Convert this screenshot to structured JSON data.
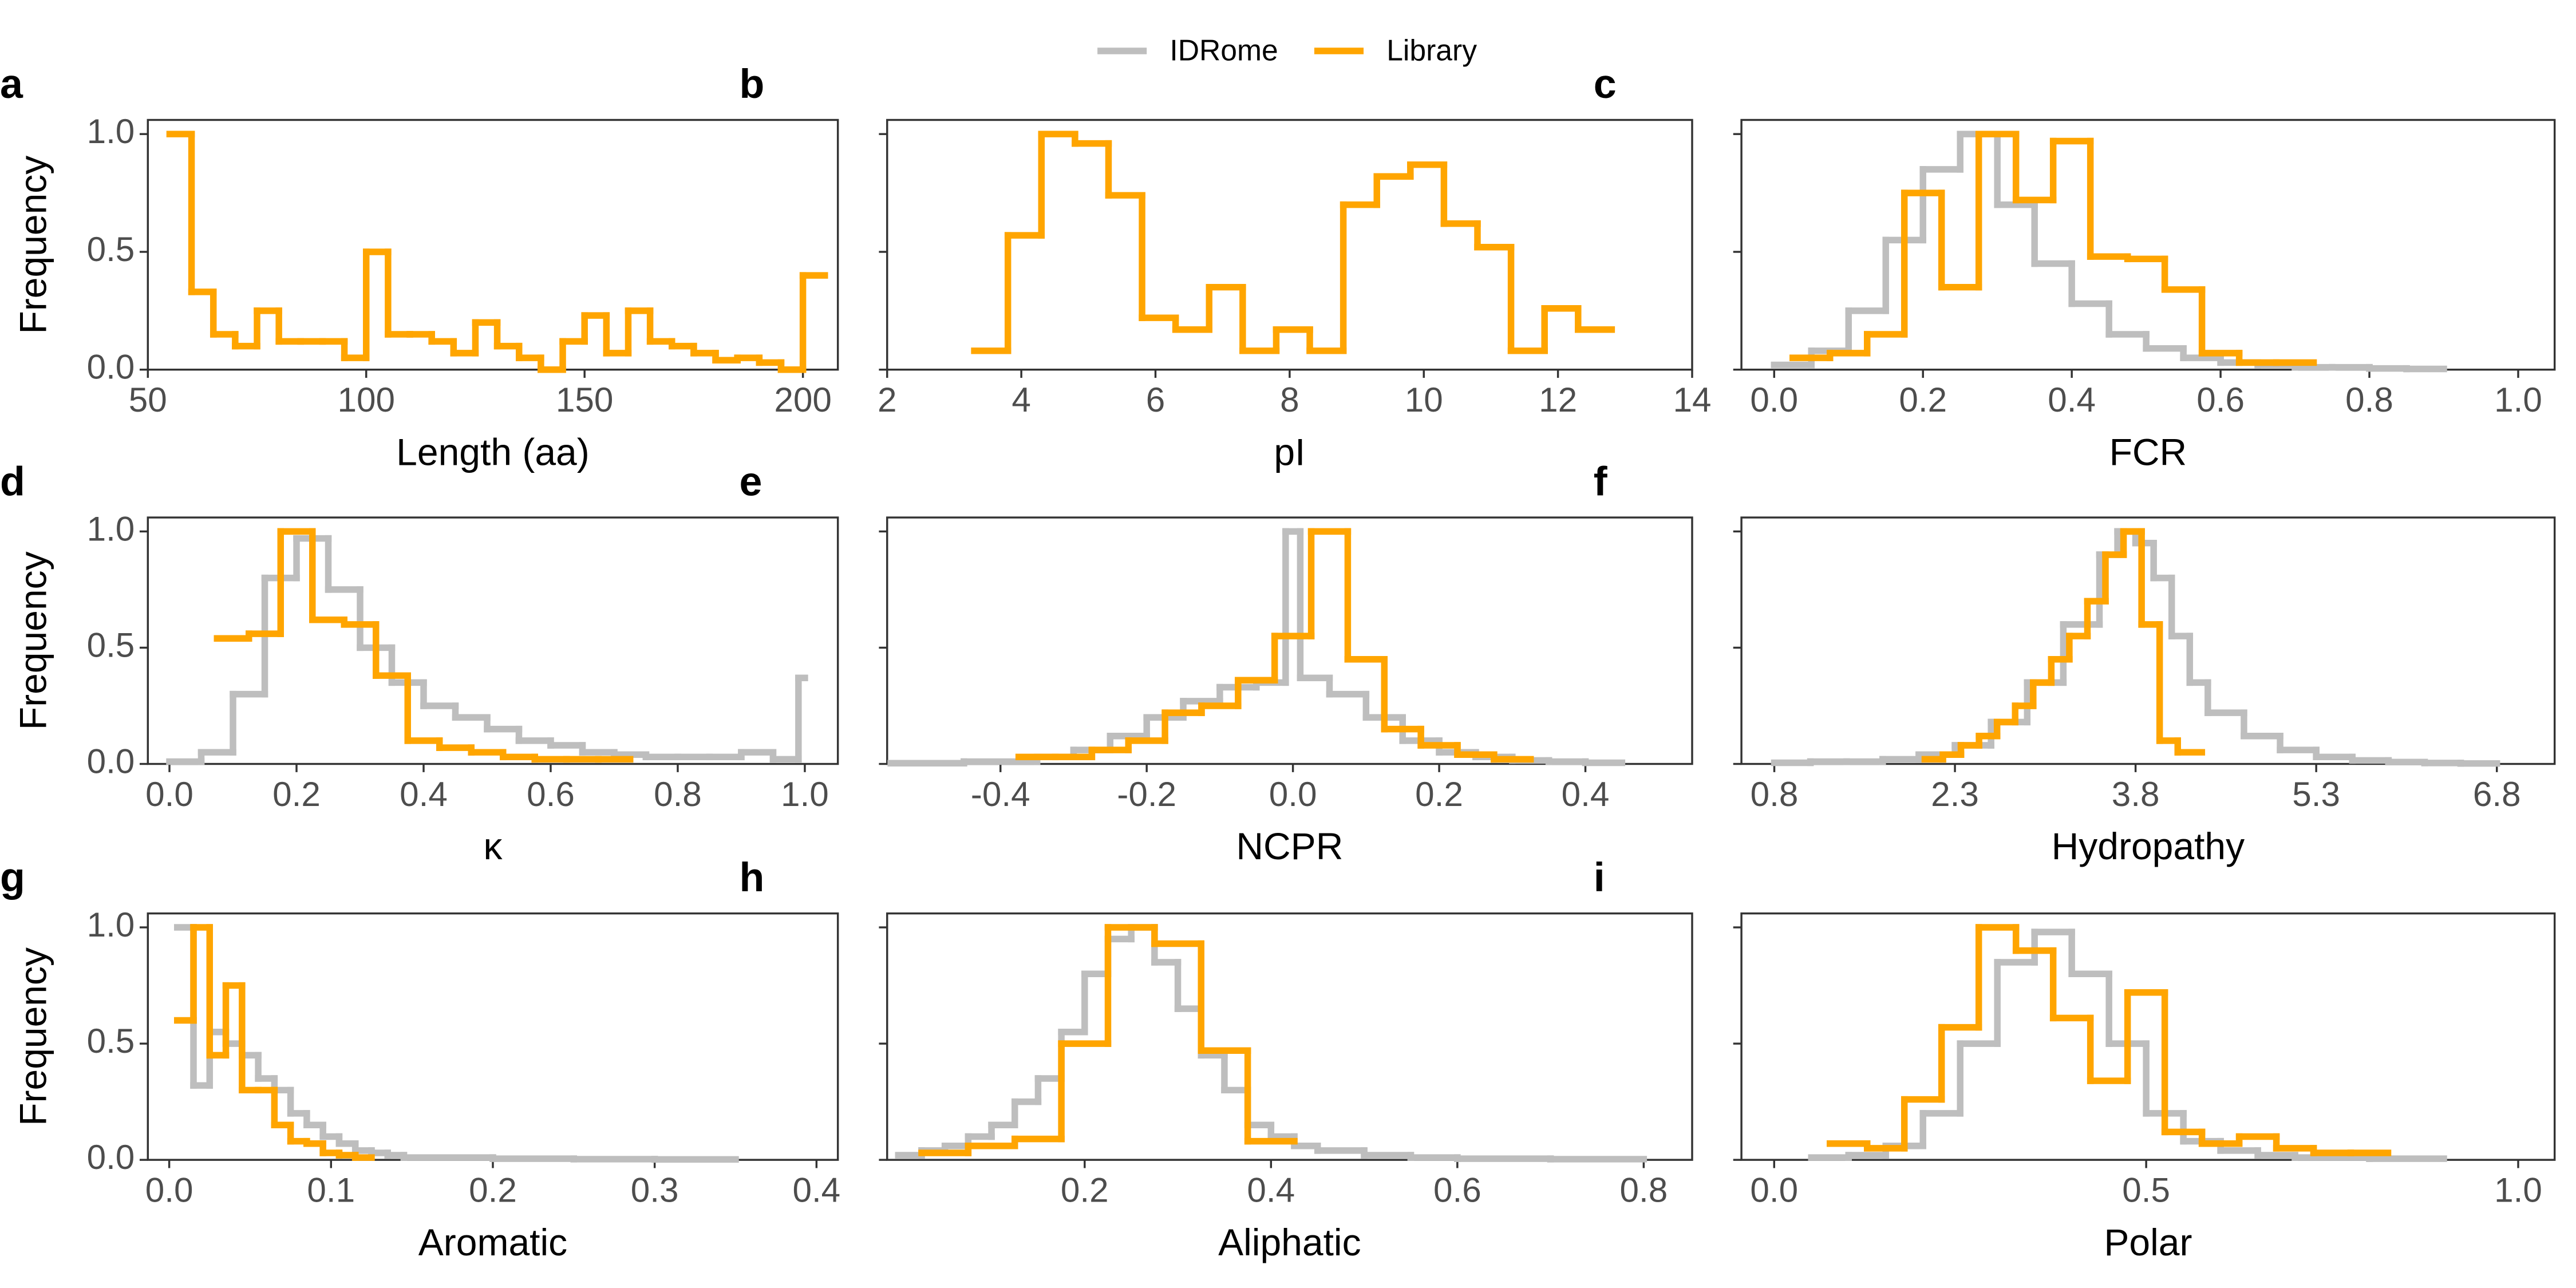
{
  "legend": [
    {
      "name": "IDRome",
      "color": "#bebebe"
    },
    {
      "name": "Library",
      "color": "#ffa500"
    }
  ],
  "chart_data": [
    {
      "type": "step",
      "panel": "a",
      "xlabel": "Length (aa)",
      "ylabel": "Frequency",
      "xlim": [
        50,
        208
      ],
      "xticks": [
        50,
        100,
        150,
        200
      ],
      "ylim": [
        0,
        1.06
      ],
      "yticks": [
        {
          "value": 0,
          "label": "0.0"
        },
        0.5,
        {
          "value": 1,
          "label": "1.0"
        }
      ],
      "ytick_labels": true,
      "series": [
        {
          "name": "Library",
          "bins": [
            55,
            60,
            65,
            70,
            75,
            80,
            85,
            90,
            95,
            100,
            105,
            110,
            115,
            120,
            125,
            130,
            135,
            140,
            145,
            150,
            155,
            160,
            165,
            170,
            175,
            180,
            185,
            190,
            195,
            200,
            205
          ],
          "values": [
            1.0,
            0.33,
            0.15,
            0.1,
            0.25,
            0.12,
            0.12,
            0.12,
            0.05,
            0.5,
            0.15,
            0.15,
            0.12,
            0.07,
            0.2,
            0.1,
            0.05,
            0.0,
            0.12,
            0.23,
            0.07,
            0.25,
            0.12,
            0.1,
            0.07,
            0.04,
            0.05,
            0.03,
            0.0,
            0.4
          ]
        }
      ]
    },
    {
      "type": "step",
      "panel": "b",
      "xlabel": "pI",
      "xlim": [
        2,
        14
      ],
      "xticks": [
        2,
        4,
        6,
        8,
        10,
        12,
        14
      ],
      "ylim": [
        0,
        1.06
      ],
      "yticks": [
        {
          "value": 0,
          "label": "0.0"
        },
        0.5,
        {
          "value": 1,
          "label": "1.0"
        }
      ],
      "ytick_labels": false,
      "series": [
        {
          "name": "Library",
          "bins": [
            3.3,
            3.8,
            4.3,
            4.8,
            5.3,
            5.8,
            6.3,
            6.8,
            7.3,
            7.8,
            8.3,
            8.8,
            9.3,
            9.8,
            10.3,
            10.8,
            11.3,
            11.8,
            12.3,
            12.8
          ],
          "values": [
            0.08,
            0.57,
            1.0,
            0.96,
            0.74,
            0.22,
            0.17,
            0.35,
            0.08,
            0.17,
            0.08,
            0.7,
            0.82,
            0.87,
            0.62,
            0.52,
            0.08,
            0.26,
            0.17
          ]
        }
      ]
    },
    {
      "type": "step",
      "panel": "c",
      "xlabel": "FCR",
      "xlim": [
        -0.044,
        1.049
      ],
      "xticks": [
        {
          "value": 0,
          "label": "0.0"
        },
        0.2,
        0.4,
        0.6,
        0.8,
        {
          "value": 1,
          "label": "1.0"
        }
      ],
      "ylim": [
        0,
        1.06
      ],
      "yticks": [
        {
          "value": 0,
          "label": "0.0"
        },
        0.5,
        {
          "value": 1,
          "label": "1.0"
        }
      ],
      "ytick_labels": false,
      "series": [
        {
          "name": "IDRome",
          "bins": [
            0,
            0.05,
            0.1,
            0.15,
            0.2,
            0.25,
            0.3,
            0.35,
            0.4,
            0.45,
            0.5,
            0.55,
            0.6,
            0.65,
            0.7,
            0.75,
            0.8,
            0.85,
            0.9
          ],
          "values": [
            0.02,
            0.08,
            0.25,
            0.55,
            0.85,
            1.0,
            0.7,
            0.45,
            0.28,
            0.15,
            0.09,
            0.05,
            0.03,
            0.02,
            0.01,
            0.01,
            0.005,
            0.003
          ]
        },
        {
          "name": "Library",
          "bins": [
            0.025,
            0.075,
            0.125,
            0.175,
            0.225,
            0.275,
            0.325,
            0.375,
            0.425,
            0.475,
            0.525,
            0.575,
            0.625,
            0.675,
            0.725
          ],
          "values": [
            0.05,
            0.07,
            0.15,
            0.75,
            0.35,
            1.0,
            0.72,
            0.97,
            0.48,
            0.47,
            0.34,
            0.07,
            0.03,
            0.03
          ]
        }
      ]
    },
    {
      "type": "step",
      "panel": "d",
      "xlabel": "κ",
      "ylabel": "Frequency",
      "xlim": [
        -0.034,
        1.052
      ],
      "xticks": [
        {
          "value": 0,
          "label": "0.0"
        },
        0.2,
        0.4,
        0.6,
        0.8,
        {
          "value": 1,
          "label": "1.0"
        }
      ],
      "ylim": [
        0,
        1.06
      ],
      "yticks": [
        {
          "value": 0,
          "label": "0.0"
        },
        0.5,
        {
          "value": 1,
          "label": "1.0"
        }
      ],
      "ytick_labels": true,
      "series": [
        {
          "name": "IDRome",
          "bins": [
            0,
            0.05,
            0.1,
            0.15,
            0.2,
            0.25,
            0.3,
            0.35,
            0.4,
            0.45,
            0.5,
            0.55,
            0.6,
            0.65,
            0.7,
            0.75,
            0.8,
            0.85,
            0.9,
            0.95,
            0.99,
            1.0
          ],
          "values": [
            0.01,
            0.05,
            0.3,
            0.8,
            0.97,
            0.75,
            0.5,
            0.35,
            0.25,
            0.2,
            0.15,
            0.1,
            0.08,
            0.05,
            0.04,
            0.03,
            0.03,
            0.03,
            0.05,
            0.02,
            0.37
          ]
        },
        {
          "name": "Library",
          "bins": [
            0.075,
            0.125,
            0.175,
            0.225,
            0.275,
            0.325,
            0.375,
            0.425,
            0.475,
            0.525,
            0.575,
            0.625,
            0.675,
            0.725
          ],
          "values": [
            0.54,
            0.56,
            1.0,
            0.62,
            0.6,
            0.38,
            0.1,
            0.07,
            0.05,
            0.03,
            0.02,
            0.02,
            0.02
          ]
        }
      ]
    },
    {
      "type": "step",
      "panel": "e",
      "xlabel": "NCPR",
      "xlim": [
        -0.555,
        0.546
      ],
      "xticks": [
        -0.4,
        -0.2,
        {
          "value": 0,
          "label": "0.0"
        },
        0.2,
        0.4
      ],
      "ylim": [
        0,
        1.06
      ],
      "yticks": [
        {
          "value": 0,
          "label": "0.0"
        },
        0.5,
        {
          "value": 1,
          "label": "1.0"
        }
      ],
      "ytick_labels": false,
      "series": [
        {
          "name": "IDRome",
          "bins": [
            -0.55,
            -0.45,
            -0.35,
            -0.3,
            -0.25,
            -0.2,
            -0.15,
            -0.1,
            -0.05,
            -0.01,
            0.01,
            0.05,
            0.1,
            0.15,
            0.2,
            0.25,
            0.3,
            0.35,
            0.4,
            0.45
          ],
          "values": [
            0.003,
            0.01,
            0.03,
            0.06,
            0.12,
            0.2,
            0.27,
            0.33,
            0.35,
            1.0,
            0.37,
            0.3,
            0.2,
            0.1,
            0.05,
            0.03,
            0.015,
            0.01,
            0.005
          ]
        },
        {
          "name": "Library",
          "bins": [
            -0.375,
            -0.325,
            -0.275,
            -0.225,
            -0.175,
            -0.125,
            -0.075,
            -0.025,
            0.025,
            0.075,
            0.125,
            0.175,
            0.225,
            0.275,
            0.325
          ],
          "values": [
            0.03,
            0.03,
            0.06,
            0.1,
            0.22,
            0.25,
            0.36,
            0.55,
            1.0,
            0.45,
            0.15,
            0.08,
            0.04,
            0.02
          ]
        }
      ]
    },
    {
      "type": "step",
      "panel": "f",
      "xlabel": "Hydropathy",
      "xlim": [
        0.527,
        7.28
      ],
      "xticks": [
        0.8,
        2.3,
        3.8,
        5.3,
        6.8
      ],
      "ylim": [
        0,
        1.06
      ],
      "yticks": [
        {
          "value": 0,
          "label": "0.0"
        },
        0.5,
        {
          "value": 1,
          "label": "1.0"
        }
      ],
      "ytick_labels": false,
      "series": [
        {
          "name": "IDRome",
          "bins": [
            0.8,
            1.1,
            1.4,
            1.7,
            2.0,
            2.3,
            2.6,
            2.9,
            3.2,
            3.5,
            3.65,
            3.8,
            3.95,
            4.1,
            4.25,
            4.4,
            4.7,
            5.0,
            5.3,
            5.6,
            5.9,
            6.2,
            6.5,
            6.8
          ],
          "values": [
            0.005,
            0.01,
            0.01,
            0.02,
            0.04,
            0.08,
            0.18,
            0.35,
            0.6,
            0.9,
            1.0,
            0.95,
            0.8,
            0.55,
            0.35,
            0.22,
            0.12,
            0.06,
            0.03,
            0.015,
            0.008,
            0.004,
            0.002
          ]
        },
        {
          "name": "Library",
          "bins": [
            2.05,
            2.2,
            2.35,
            2.5,
            2.65,
            2.8,
            2.95,
            3.1,
            3.25,
            3.4,
            3.55,
            3.7,
            3.85,
            4.0,
            4.15,
            4.35
          ],
          "values": [
            0.02,
            0.04,
            0.08,
            0.12,
            0.18,
            0.25,
            0.35,
            0.45,
            0.55,
            0.7,
            0.9,
            1.0,
            0.6,
            0.1,
            0.05
          ]
        }
      ]
    },
    {
      "type": "step",
      "panel": "g",
      "xlabel": "Aromatic",
      "ylabel": "Frequency",
      "xlim": [
        -0.0132,
        0.4132
      ],
      "xticks": [
        {
          "value": 0,
          "label": "0.0"
        },
        0.1,
        0.2,
        0.3,
        0.4
      ],
      "ylim": [
        0,
        1.06
      ],
      "yticks": [
        {
          "value": 0,
          "label": "0.0"
        },
        0.5,
        {
          "value": 1,
          "label": "1.0"
        }
      ],
      "ytick_labels": true,
      "series": [
        {
          "name": "IDRome",
          "bins": [
            0.005,
            0.015,
            0.025,
            0.035,
            0.045,
            0.055,
            0.065,
            0.075,
            0.085,
            0.095,
            0.105,
            0.115,
            0.125,
            0.135,
            0.145,
            0.2,
            0.25,
            0.3,
            0.35
          ],
          "values": [
            1.0,
            0.32,
            0.55,
            0.5,
            0.45,
            0.35,
            0.3,
            0.2,
            0.15,
            0.1,
            0.07,
            0.04,
            0.03,
            0.02,
            0.01,
            0.005,
            0.003,
            0.002
          ]
        },
        {
          "name": "Library",
          "bins": [
            0.005,
            0.015,
            0.025,
            0.035,
            0.045,
            0.055,
            0.065,
            0.075,
            0.085,
            0.095,
            0.105,
            0.115,
            0.125
          ],
          "values": [
            0.6,
            1.0,
            0.45,
            0.75,
            0.3,
            0.3,
            0.15,
            0.08,
            0.07,
            0.03,
            0.02,
            0.01
          ]
        }
      ]
    },
    {
      "type": "step",
      "panel": "h",
      "xlabel": "Aliphatic",
      "xlim": [
        -0.012,
        0.852
      ],
      "xticks": [
        0.2,
        0.4,
        0.6,
        0.8
      ],
      "ylim": [
        0,
        1.06
      ],
      "yticks": [
        {
          "value": 0,
          "label": "0.0"
        },
        0.5,
        {
          "value": 1,
          "label": "1.0"
        }
      ],
      "ytick_labels": false,
      "series": [
        {
          "name": "IDRome",
          "bins": [
            0,
            0.025,
            0.05,
            0.075,
            0.1,
            0.125,
            0.15,
            0.175,
            0.2,
            0.225,
            0.25,
            0.275,
            0.3,
            0.325,
            0.35,
            0.375,
            0.4,
            0.425,
            0.45,
            0.5,
            0.55,
            0.6,
            0.7,
            0.8
          ],
          "values": [
            0.02,
            0.04,
            0.06,
            0.1,
            0.15,
            0.25,
            0.35,
            0.55,
            0.8,
            0.95,
            1.0,
            0.85,
            0.65,
            0.45,
            0.3,
            0.15,
            0.1,
            0.06,
            0.04,
            0.02,
            0.01,
            0.005,
            0.003
          ]
        },
        {
          "name": "Library",
          "bins": [
            0.025,
            0.075,
            0.125,
            0.175,
            0.225,
            0.275,
            0.325,
            0.375,
            0.425
          ],
          "values": [
            0.03,
            0.06,
            0.09,
            0.5,
            1.0,
            0.93,
            0.47,
            0.08
          ]
        }
      ]
    },
    {
      "type": "step",
      "panel": "i",
      "xlabel": "Polar",
      "xlim": [
        -0.044,
        1.049
      ],
      "xticks": [
        {
          "value": 0,
          "label": "0.0"
        },
        0.5,
        {
          "value": 1,
          "label": "1.0"
        }
      ],
      "ylim": [
        0,
        1.06
      ],
      "yticks": [
        {
          "value": 0,
          "label": "0.0"
        },
        0.5,
        {
          "value": 1,
          "label": "1.0"
        }
      ],
      "ytick_labels": false,
      "series": [
        {
          "name": "IDRome",
          "bins": [
            0.05,
            0.1,
            0.15,
            0.2,
            0.25,
            0.3,
            0.35,
            0.4,
            0.45,
            0.5,
            0.55,
            0.6,
            0.65,
            0.7,
            0.8,
            0.9
          ],
          "values": [
            0.01,
            0.02,
            0.06,
            0.2,
            0.5,
            0.85,
            0.98,
            0.8,
            0.5,
            0.2,
            0.08,
            0.04,
            0.02,
            0.01,
            0.005
          ]
        },
        {
          "name": "Library",
          "bins": [
            0.075,
            0.125,
            0.175,
            0.225,
            0.275,
            0.325,
            0.375,
            0.425,
            0.475,
            0.525,
            0.575,
            0.625,
            0.675,
            0.725,
            0.775,
            0.825
          ],
          "values": [
            0.07,
            0.05,
            0.26,
            0.57,
            1.0,
            0.9,
            0.61,
            0.34,
            0.72,
            0.12,
            0.07,
            0.1,
            0.05,
            0.03,
            0.03
          ]
        }
      ]
    }
  ]
}
